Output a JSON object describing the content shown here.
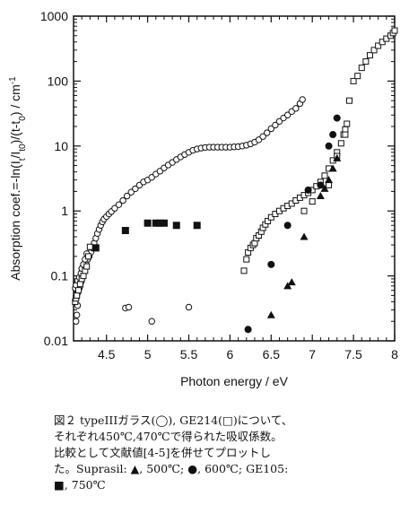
{
  "chart_data": {
    "type": "scatter",
    "xlabel": "Photon energy / eV",
    "ylabel": "Absorption coef.=-ln(I_t/I_t0)/(t-t0) / cm⁻¹",
    "ylabel_parts": [
      "Absorption coef.=-ln(I",
      "t",
      "/I",
      "t0",
      ")/(t-t",
      "0",
      ") / cm",
      "-1"
    ],
    "xlim": [
      4.1,
      8.0
    ],
    "ylim": [
      0.01,
      1000
    ],
    "yscale": "log",
    "xticks": [
      4.5,
      5,
      5.5,
      6,
      6.5,
      7,
      7.5,
      8
    ],
    "xtick_labels": [
      "4.5",
      "5",
      "5.5",
      "6",
      "6.5",
      "7",
      "7.5",
      "8"
    ],
    "yticks": [
      0.01,
      0.1,
      1,
      10,
      100,
      1000
    ],
    "ytick_labels": [
      "0.01",
      "0.1",
      "1",
      "10",
      "100",
      "1000"
    ],
    "grid": false,
    "series": [
      {
        "name": "typeIII",
        "marker": "open-circle",
        "points": [
          [
            4.13,
            0.045
          ],
          [
            4.14,
            0.05
          ],
          [
            4.15,
            0.055
          ],
          [
            4.16,
            0.06
          ],
          [
            4.17,
            0.065
          ],
          [
            4.18,
            0.07
          ],
          [
            4.19,
            0.08
          ],
          [
            4.2,
            0.09
          ],
          [
            4.21,
            0.1
          ],
          [
            4.22,
            0.11
          ],
          [
            4.23,
            0.12
          ],
          [
            4.24,
            0.14
          ],
          [
            4.25,
            0.16
          ],
          [
            4.27,
            0.18
          ],
          [
            4.29,
            0.2
          ],
          [
            4.31,
            0.23
          ],
          [
            4.33,
            0.27
          ],
          [
            4.35,
            0.32
          ],
          [
            4.37,
            0.38
          ],
          [
            4.39,
            0.45
          ],
          [
            4.41,
            0.52
          ],
          [
            4.43,
            0.6
          ],
          [
            4.45,
            0.68
          ],
          [
            4.47,
            0.75
          ],
          [
            4.5,
            0.82
          ],
          [
            4.53,
            0.9
          ],
          [
            4.56,
            0.98
          ],
          [
            4.6,
            1.1
          ],
          [
            4.65,
            1.25
          ],
          [
            4.7,
            1.45
          ],
          [
            4.75,
            1.7
          ],
          [
            4.8,
            1.95
          ],
          [
            4.85,
            2.2
          ],
          [
            4.9,
            2.5
          ],
          [
            4.95,
            2.8
          ],
          [
            5.0,
            3.0
          ],
          [
            5.05,
            3.3
          ],
          [
            5.1,
            3.7
          ],
          [
            5.15,
            4.1
          ],
          [
            5.2,
            4.6
          ],
          [
            5.25,
            5.1
          ],
          [
            5.3,
            5.6
          ],
          [
            5.35,
            6.2
          ],
          [
            5.4,
            6.8
          ],
          [
            5.45,
            7.4
          ],
          [
            5.5,
            8.0
          ],
          [
            5.55,
            8.6
          ],
          [
            5.6,
            9.0
          ],
          [
            5.65,
            9.3
          ],
          [
            5.7,
            9.5
          ],
          [
            5.75,
            9.6
          ],
          [
            5.8,
            9.6
          ],
          [
            5.85,
            9.6
          ],
          [
            5.9,
            9.6
          ],
          [
            5.95,
            9.6
          ],
          [
            6.0,
            9.6
          ],
          [
            6.05,
            9.7
          ],
          [
            6.1,
            9.8
          ],
          [
            6.15,
            10.0
          ],
          [
            6.2,
            10.3
          ],
          [
            6.25,
            10.8
          ],
          [
            6.3,
            11.5
          ],
          [
            6.35,
            12.5
          ],
          [
            6.4,
            14.0
          ],
          [
            6.45,
            16.0
          ],
          [
            6.5,
            18.5
          ],
          [
            6.55,
            21.0
          ],
          [
            6.6,
            24.0
          ],
          [
            6.65,
            27.0
          ],
          [
            6.7,
            30.0
          ],
          [
            6.75,
            34.0
          ],
          [
            6.8,
            38.0
          ],
          [
            6.85,
            45.0
          ],
          [
            6.88,
            52.0
          ],
          [
            4.12,
            0.065
          ],
          [
            4.13,
            0.072
          ],
          [
            4.15,
            0.085
          ],
          [
            4.17,
            0.095
          ],
          [
            4.19,
            0.11
          ],
          [
            4.2,
            0.13
          ],
          [
            4.22,
            0.15
          ],
          [
            4.24,
            0.18
          ],
          [
            4.26,
            0.22
          ],
          [
            4.15,
            0.035
          ],
          [
            4.14,
            0.025
          ],
          [
            4.13,
            0.02
          ],
          [
            4.73,
            0.032
          ],
          [
            4.77,
            0.033
          ],
          [
            5.05,
            0.02
          ],
          [
            5.5,
            0.033
          ]
        ]
      },
      {
        "name": "GE214",
        "marker": "open-square",
        "points": [
          [
            4.12,
            0.04
          ],
          [
            4.13,
            0.045
          ],
          [
            4.14,
            0.05
          ],
          [
            4.16,
            0.06
          ],
          [
            4.18,
            0.075
          ],
          [
            4.2,
            0.09
          ],
          [
            4.22,
            0.1
          ],
          [
            4.24,
            0.12
          ],
          [
            4.26,
            0.14
          ],
          [
            4.28,
            0.2
          ],
          [
            4.3,
            0.28
          ],
          [
            6.17,
            0.12
          ],
          [
            6.2,
            0.18
          ],
          [
            6.22,
            0.23
          ],
          [
            6.25,
            0.27
          ],
          [
            6.28,
            0.3
          ],
          [
            6.3,
            0.32
          ],
          [
            6.32,
            0.38
          ],
          [
            6.35,
            0.42
          ],
          [
            6.38,
            0.48
          ],
          [
            6.4,
            0.55
          ],
          [
            6.43,
            0.62
          ],
          [
            6.46,
            0.7
          ],
          [
            6.5,
            0.8
          ],
          [
            6.55,
            0.9
          ],
          [
            6.6,
            1.0
          ],
          [
            6.65,
            1.1
          ],
          [
            6.7,
            1.2
          ],
          [
            6.75,
            1.3
          ],
          [
            6.8,
            1.45
          ],
          [
            6.85,
            1.6
          ],
          [
            6.9,
            1.75
          ],
          [
            6.95,
            1.9
          ],
          [
            7.0,
            2.1
          ],
          [
            7.05,
            2.4
          ],
          [
            7.1,
            2.8
          ],
          [
            7.15,
            3.5
          ],
          [
            7.2,
            4.5
          ],
          [
            7.25,
            6.0
          ],
          [
            7.3,
            8.0
          ],
          [
            7.35,
            11.0
          ],
          [
            7.38,
            15.0
          ],
          [
            7.4,
            18.0
          ],
          [
            7.42,
            22.0
          ],
          [
            6.9,
            1.0
          ],
          [
            7.0,
            1.4
          ],
          [
            7.2,
            2.5
          ],
          [
            7.3,
            7.0
          ],
          [
            7.4,
            15.0
          ],
          [
            7.45,
            50.0
          ],
          [
            7.5,
            100.0
          ],
          [
            7.55,
            120.0
          ],
          [
            7.6,
            160.0
          ],
          [
            7.65,
            200.0
          ],
          [
            7.7,
            250.0
          ],
          [
            7.75,
            300.0
          ],
          [
            7.8,
            350.0
          ],
          [
            7.85,
            400.0
          ],
          [
            7.9,
            450.0
          ],
          [
            7.95,
            500.0
          ],
          [
            7.98,
            550.0
          ],
          [
            8.0,
            600.0
          ]
        ]
      },
      {
        "name": "Suprasil, 500℃",
        "marker": "filled-triangle",
        "points": [
          [
            6.5,
            0.025
          ],
          [
            6.7,
            0.07
          ],
          [
            6.75,
            0.08
          ],
          [
            6.9,
            0.4
          ],
          [
            7.1,
            1.7
          ],
          [
            7.15,
            2.2
          ],
          [
            7.2,
            3.0
          ],
          [
            7.25,
            4.5
          ],
          [
            7.3,
            6.5
          ]
        ]
      },
      {
        "name": "Suprasil, 600℃",
        "marker": "filled-circle",
        "points": [
          [
            6.22,
            0.015
          ],
          [
            6.5,
            0.15
          ],
          [
            6.7,
            0.6
          ],
          [
            6.95,
            2.1
          ],
          [
            7.1,
            2.5
          ],
          [
            7.2,
            10.0
          ],
          [
            7.25,
            15.0
          ],
          [
            7.3,
            27.0
          ]
        ]
      },
      {
        "name": "GE105, 750℃",
        "marker": "filled-square",
        "points": [
          [
            4.37,
            0.27
          ],
          [
            4.73,
            0.5
          ],
          [
            5.0,
            0.65
          ],
          [
            5.1,
            0.65
          ],
          [
            5.15,
            0.65
          ],
          [
            5.2,
            0.65
          ],
          [
            5.35,
            0.6
          ],
          [
            5.6,
            0.6
          ]
        ]
      }
    ]
  },
  "caption": {
    "lines": [
      "図２ typeIIIガラス(◯), GE214(□)について、",
      "それぞれ450℃,470℃で得られた吸収係数。",
      "比較として文献値[4-5]を併せてプロットし",
      "た。Suprasil: ▲, 500℃; ●, 600℃; GE105:",
      "■, 750℃"
    ]
  }
}
